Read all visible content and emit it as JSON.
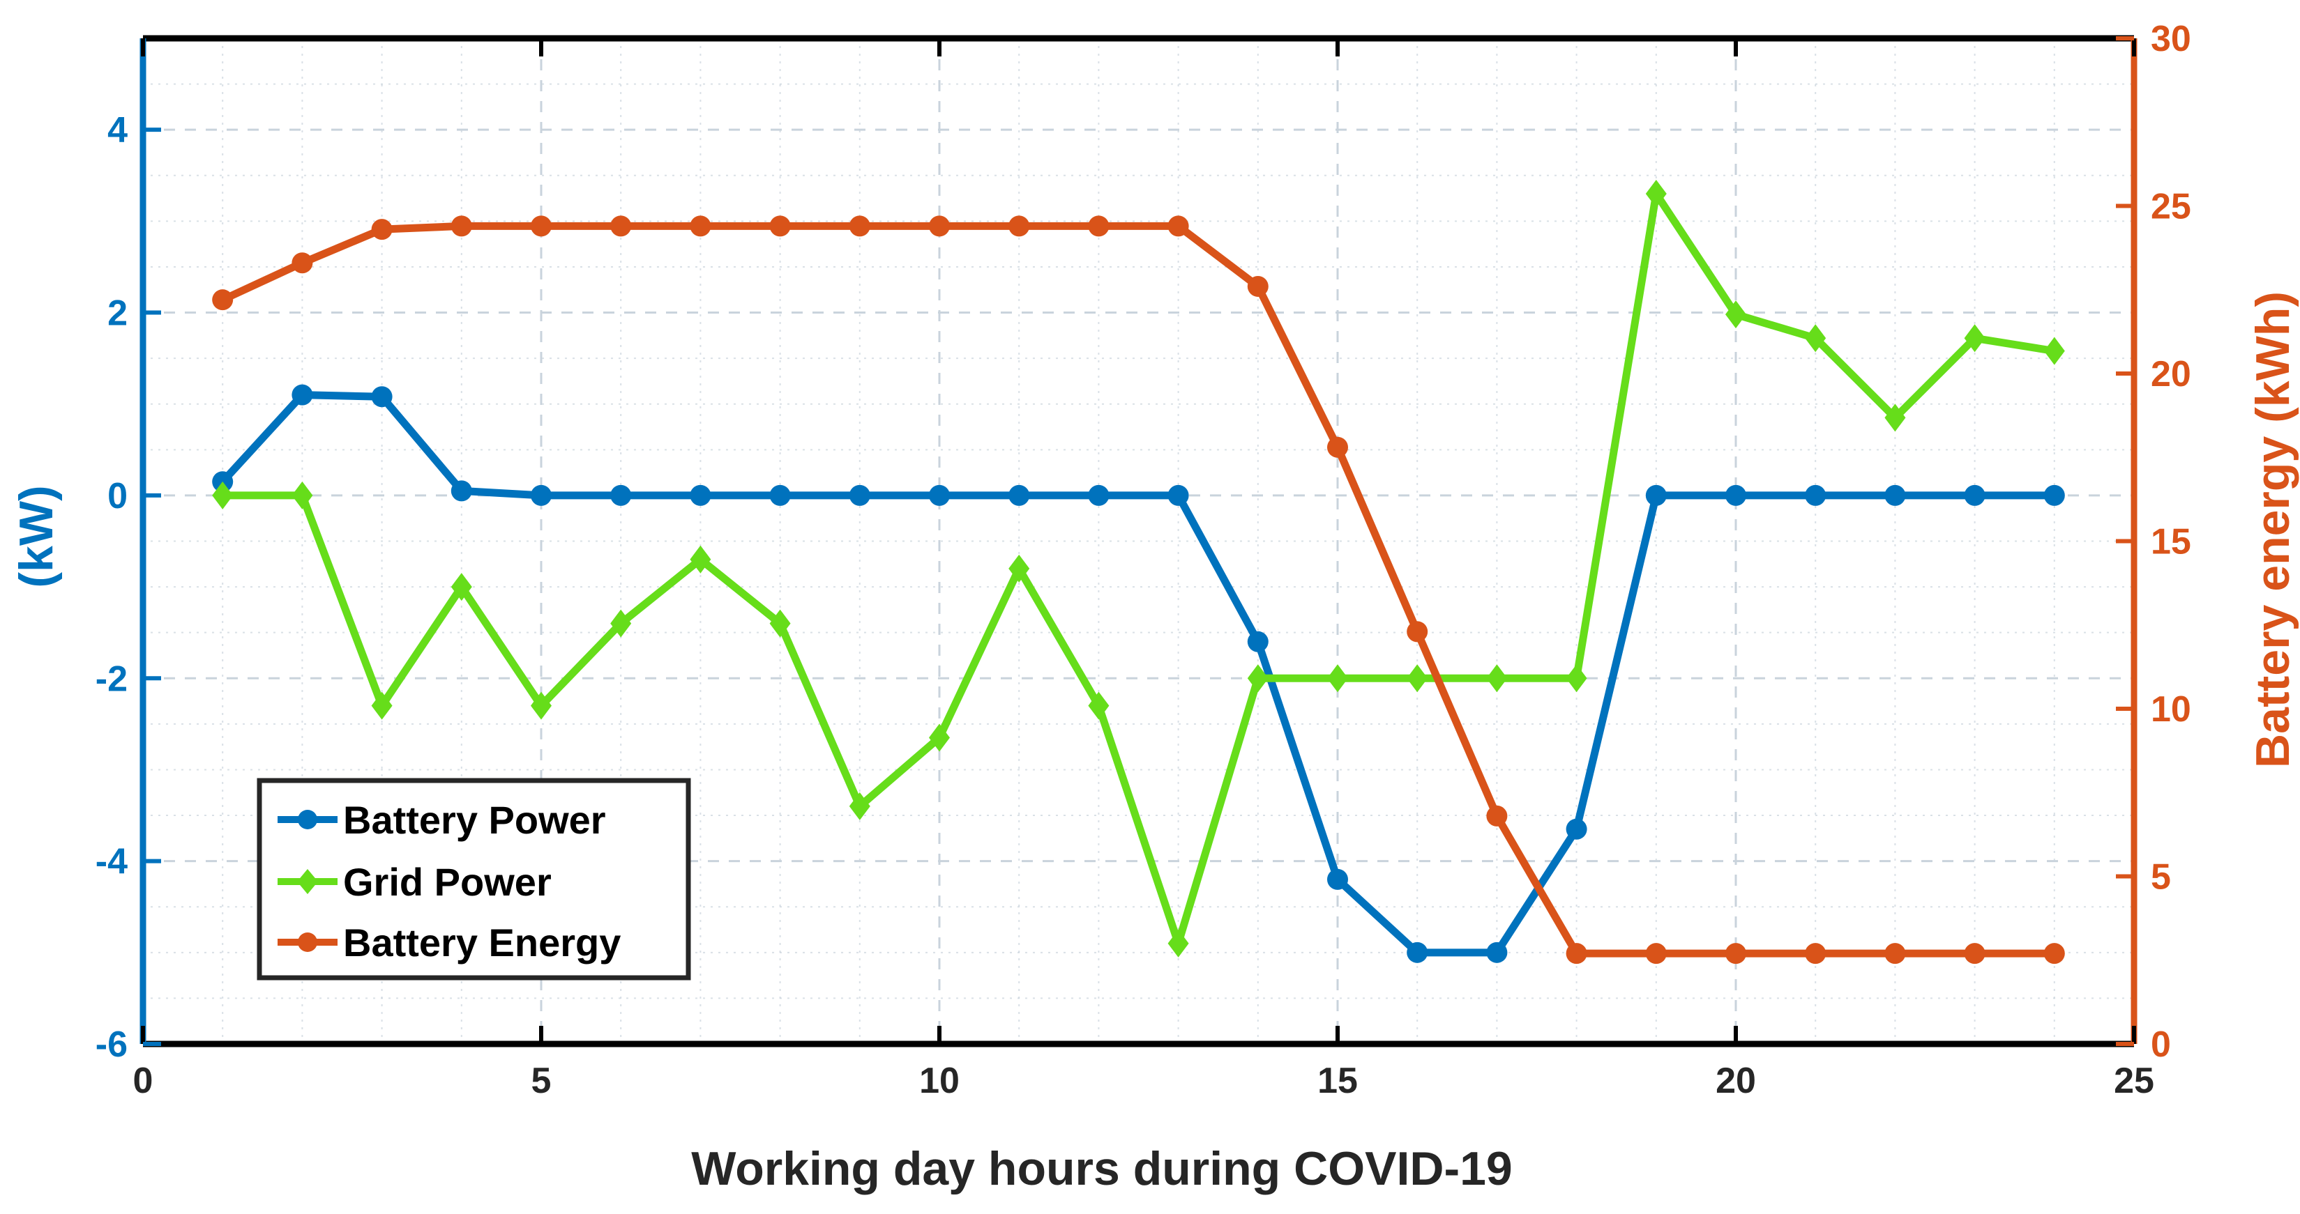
{
  "chart_data": {
    "type": "line",
    "xlabel": "Working day hours during COVID-19",
    "ylabel_left": "(kW)",
    "ylabel_right": "Battery energy (kWh)",
    "xlim": [
      0,
      25
    ],
    "ylim_left": [
      -6,
      5
    ],
    "ylim_right": [
      0,
      30
    ],
    "x_ticks": [
      0,
      5,
      10,
      15,
      20,
      25
    ],
    "y_left_ticks": [
      -6,
      -4,
      -2,
      0,
      2,
      4
    ],
    "y_right_ticks": [
      0,
      5,
      10,
      15,
      20,
      25,
      30
    ],
    "grid": true,
    "legend_position": "bottom-left",
    "x": [
      1,
      2,
      3,
      4,
      5,
      6,
      7,
      8,
      9,
      10,
      11,
      12,
      13,
      14,
      15,
      16,
      17,
      18,
      19,
      20,
      21,
      22,
      23,
      24
    ],
    "series": [
      {
        "name": "Battery Power",
        "axis": "left",
        "color": "#0072BD",
        "marker": "circle",
        "values": [
          0.15,
          1.1,
          1.08,
          0.05,
          0,
          0,
          0,
          0,
          0,
          0,
          0,
          0,
          0,
          -1.6,
          -4.2,
          -5,
          -5,
          -3.65,
          0,
          0,
          0,
          0,
          0,
          0
        ]
      },
      {
        "name": "Grid Power",
        "axis": "left",
        "color": "#66DD1A",
        "marker": "diamond",
        "values": [
          0,
          0,
          -2.3,
          -1,
          -2.3,
          -1.4,
          -0.7,
          -1.4,
          -3.4,
          -2.65,
          -0.8,
          -2.3,
          -4.9,
          -2,
          -2,
          -2,
          -2,
          -2,
          3.3,
          1.98,
          1.72,
          0.85,
          1.72,
          1.58
        ]
      },
      {
        "name": "Battery Energy",
        "axis": "right",
        "color": "#D95319",
        "marker": "circle",
        "values": [
          22.2,
          23.3,
          24.3,
          24.4,
          24.4,
          24.4,
          24.4,
          24.4,
          24.4,
          24.4,
          24.4,
          24.4,
          24.4,
          22.6,
          17.8,
          12.3,
          6.8,
          2.7,
          2.7,
          2.7,
          2.7,
          2.7,
          2.7,
          2.7
        ]
      }
    ],
    "colors": {
      "left_axis": "#0072BD",
      "right_axis": "#D95319",
      "frame": "#000000",
      "grid": "#c9d3dc"
    }
  }
}
